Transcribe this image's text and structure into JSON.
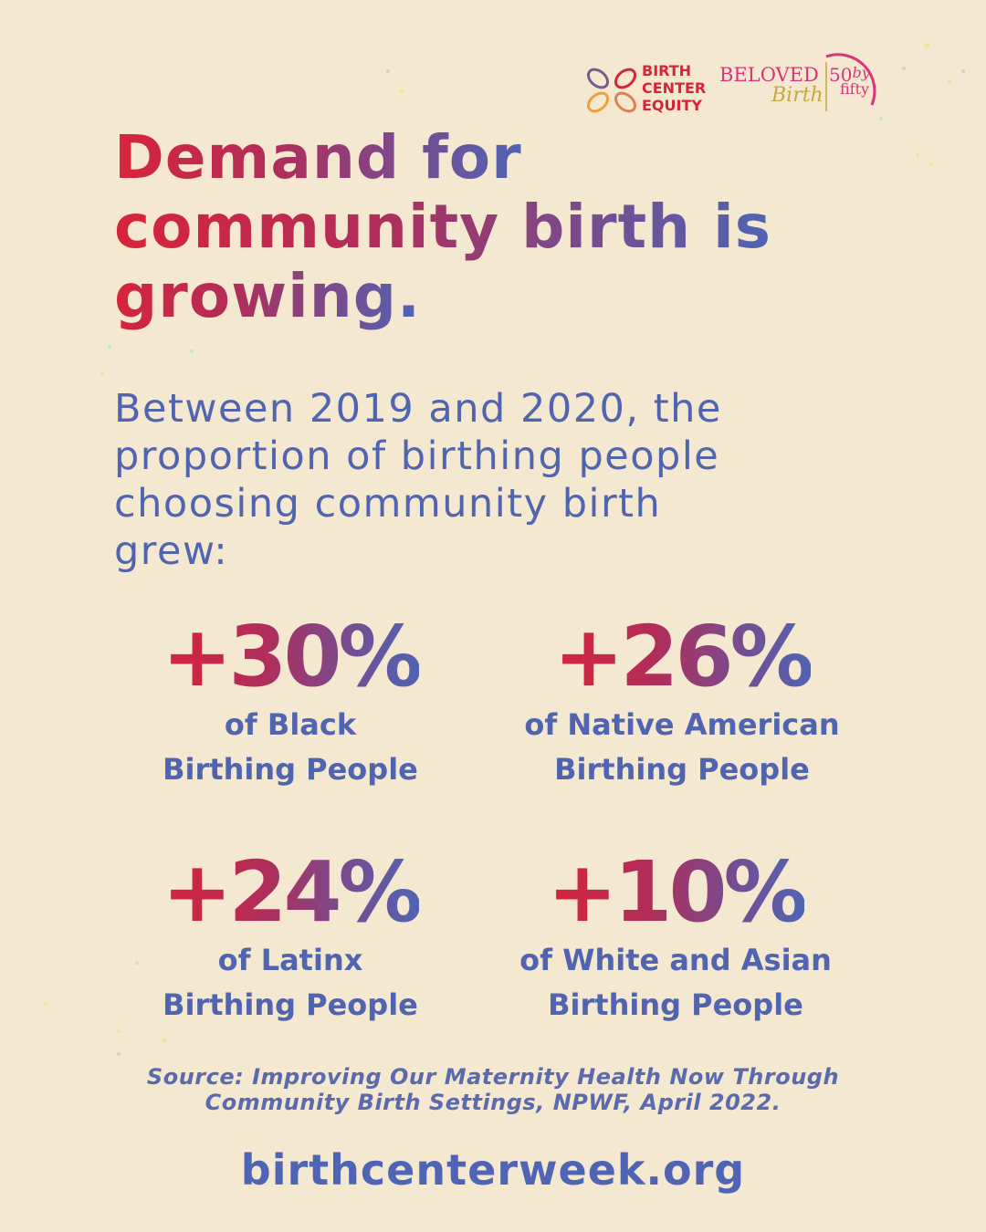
{
  "logos": {
    "birth_center_equity": [
      "BIRTH",
      "CENTER",
      "EQUITY"
    ],
    "beloved": "BELOVED",
    "birth": "Birth",
    "fifty_by": "50",
    "by": "by",
    "fifty": "fifty"
  },
  "title_lines": [
    "Demand for",
    "community birth is",
    "growing."
  ],
  "intro_lines": [
    "Between 2019 and 2020, the",
    "proportion of birthing people",
    "choosing community birth",
    "grew:"
  ],
  "stats": [
    {
      "value": "+30%",
      "label_lines": [
        "of Black",
        "Birthing People"
      ]
    },
    {
      "value": "+26%",
      "label_lines": [
        "of Native American",
        "Birthing People"
      ]
    },
    {
      "value": "+24%",
      "label_lines": [
        "of Latinx",
        "Birthing People"
      ]
    },
    {
      "value": "+10%",
      "label_lines": [
        "of White and Asian",
        "Birthing People"
      ]
    }
  ],
  "source_lines": [
    "Source: Improving Our Maternity Health Now Through",
    "Community Birth Settings, NPWF, April 2022."
  ],
  "url": "birthcenterweek.org"
}
